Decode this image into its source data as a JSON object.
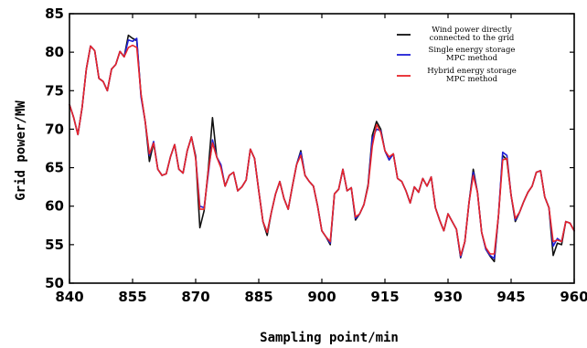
{
  "chart_data": {
    "type": "line",
    "title": "",
    "xlabel": "Sampling point/min",
    "ylabel": "Grid power/MW",
    "xlim": [
      840,
      960
    ],
    "ylim": [
      50,
      85
    ],
    "xticks": [
      840,
      855,
      870,
      885,
      900,
      915,
      930,
      945,
      960
    ],
    "yticks": [
      50,
      55,
      60,
      65,
      70,
      75,
      80,
      85
    ],
    "grid": false,
    "legend_position": "top-right",
    "colors": {
      "wind": "#111111",
      "single": "#1f1fd6",
      "hybrid": "#e8252a",
      "axis": "#000000"
    },
    "legend": [
      [
        "Wind power directly",
        "connected to the grid"
      ],
      [
        "Single energy storage",
        "MPC method"
      ],
      [
        "Hybrid energy storage",
        "MPC method"
      ]
    ],
    "x": [
      840,
      841,
      842,
      843,
      844,
      845,
      846,
      847,
      848,
      849,
      850,
      851,
      852,
      853,
      854,
      855,
      856,
      857,
      858,
      859,
      860,
      861,
      862,
      863,
      864,
      865,
      866,
      867,
      868,
      869,
      870,
      871,
      872,
      873,
      874,
      875,
      876,
      877,
      878,
      879,
      880,
      881,
      882,
      883,
      884,
      885,
      886,
      887,
      888,
      889,
      890,
      891,
      892,
      893,
      894,
      895,
      896,
      897,
      898,
      899,
      900,
      901,
      902,
      903,
      904,
      905,
      906,
      907,
      908,
      909,
      910,
      911,
      912,
      913,
      914,
      915,
      916,
      917,
      918,
      919,
      920,
      921,
      922,
      923,
      924,
      925,
      926,
      927,
      928,
      929,
      930,
      931,
      932,
      933,
      934,
      935,
      936,
      937,
      938,
      939,
      940,
      941,
      942,
      943,
      944,
      945,
      946,
      947,
      948,
      949,
      950,
      951,
      952,
      953,
      954,
      955,
      956,
      957,
      958,
      959,
      960
    ],
    "series": [
      {
        "name": "Wind power directly connected to the grid",
        "values": [
          73.2,
          71.5,
          69.3,
          72.8,
          77.8,
          80.8,
          80.2,
          76.6,
          76.2,
          75.0,
          77.8,
          78.4,
          80.1,
          79.4,
          82.2,
          81.8,
          81.5,
          74.5,
          71.0,
          65.8,
          68.2,
          64.8,
          64.0,
          64.2,
          66.4,
          68.0,
          64.8,
          64.3,
          67.2,
          69.0,
          66.5,
          57.2,
          59.4,
          64.8,
          71.5,
          66.4,
          65.2,
          62.6,
          64.0,
          64.4,
          62.0,
          62.5,
          63.4,
          67.4,
          66.2,
          62.0,
          58.0,
          56.2,
          59.2,
          61.6,
          63.2,
          61.0,
          59.6,
          62.6,
          65.4,
          67.2,
          64.0,
          63.2,
          62.6,
          60.0,
          56.8,
          56.0,
          55.0,
          61.6,
          62.2,
          64.8,
          62.0,
          62.4,
          58.2,
          59.0,
          60.2,
          62.8,
          69.2,
          71.0,
          70.0,
          67.2,
          66.0,
          66.8,
          63.6,
          63.2,
          62.0,
          60.4,
          62.5,
          61.8,
          63.6,
          62.6,
          63.8,
          59.8,
          58.2,
          56.8,
          59.0,
          58.0,
          57.0,
          53.3,
          55.4,
          60.5,
          64.8,
          61.8,
          56.6,
          54.4,
          53.5,
          52.8,
          58.8,
          66.6,
          66.0,
          61.4,
          58.0,
          59.2,
          60.6,
          61.8,
          62.6,
          64.4,
          64.6,
          61.2,
          59.8,
          53.6,
          55.2,
          55.0,
          58.0,
          57.8,
          56.8
        ]
      },
      {
        "name": "Single energy storage MPC method",
        "values": [
          73.2,
          71.5,
          69.3,
          72.8,
          77.8,
          80.8,
          80.2,
          76.6,
          76.2,
          75.0,
          77.8,
          78.4,
          80.1,
          79.4,
          81.6,
          81.4,
          81.8,
          74.2,
          71.0,
          66.6,
          68.4,
          64.8,
          64.0,
          64.2,
          66.4,
          68.0,
          64.8,
          64.3,
          67.2,
          69.0,
          66.3,
          60.0,
          59.8,
          64.2,
          68.6,
          66.4,
          65.4,
          62.6,
          64.0,
          64.4,
          62.0,
          62.5,
          63.4,
          67.4,
          66.2,
          62.0,
          58.0,
          56.6,
          59.2,
          61.6,
          63.2,
          61.0,
          59.6,
          62.6,
          65.4,
          67.0,
          64.0,
          63.2,
          62.6,
          60.0,
          56.8,
          56.0,
          55.2,
          61.6,
          62.2,
          64.8,
          62.0,
          62.4,
          58.4,
          59.0,
          60.2,
          62.6,
          68.8,
          70.0,
          69.8,
          67.2,
          66.0,
          66.8,
          63.6,
          63.2,
          62.0,
          60.4,
          62.5,
          61.8,
          63.6,
          62.6,
          63.8,
          59.8,
          58.2,
          56.8,
          59.0,
          58.0,
          57.0,
          53.4,
          55.4,
          60.5,
          64.4,
          61.8,
          56.6,
          54.4,
          53.6,
          53.2,
          58.8,
          67.0,
          66.6,
          61.4,
          58.2,
          59.2,
          60.6,
          61.8,
          62.6,
          64.4,
          64.6,
          61.2,
          59.8,
          54.8,
          55.8,
          55.4,
          58.0,
          57.8,
          56.8
        ]
      },
      {
        "name": "Hybrid energy storage MPC method",
        "values": [
          73.2,
          71.5,
          69.3,
          72.8,
          77.8,
          80.8,
          80.2,
          76.6,
          76.2,
          75.0,
          77.8,
          78.4,
          80.1,
          79.4,
          80.6,
          80.9,
          80.6,
          74.6,
          71.0,
          66.8,
          68.2,
          64.8,
          64.0,
          64.2,
          66.4,
          68.0,
          64.8,
          64.3,
          67.2,
          69.0,
          66.2,
          59.6,
          59.6,
          64.6,
          68.2,
          66.4,
          65.0,
          62.6,
          64.0,
          64.4,
          62.0,
          62.5,
          63.4,
          67.4,
          66.2,
          62.0,
          58.0,
          56.6,
          59.2,
          61.6,
          63.2,
          61.0,
          59.6,
          62.6,
          65.4,
          66.6,
          64.0,
          63.2,
          62.6,
          60.0,
          56.8,
          56.0,
          55.4,
          61.6,
          62.2,
          64.8,
          62.0,
          62.4,
          58.6,
          59.0,
          60.2,
          62.6,
          67.8,
          70.6,
          69.6,
          67.2,
          66.4,
          66.8,
          63.6,
          63.2,
          62.0,
          60.4,
          62.5,
          61.8,
          63.6,
          62.6,
          63.8,
          59.8,
          58.2,
          56.8,
          59.0,
          58.0,
          57.0,
          53.6,
          55.4,
          60.5,
          64.0,
          61.8,
          56.6,
          54.6,
          53.8,
          53.8,
          58.8,
          66.0,
          66.2,
          61.4,
          58.4,
          59.2,
          60.6,
          61.8,
          62.6,
          64.4,
          64.6,
          61.2,
          59.8,
          55.4,
          55.6,
          55.4,
          58.0,
          57.8,
          56.8
        ]
      }
    ]
  }
}
